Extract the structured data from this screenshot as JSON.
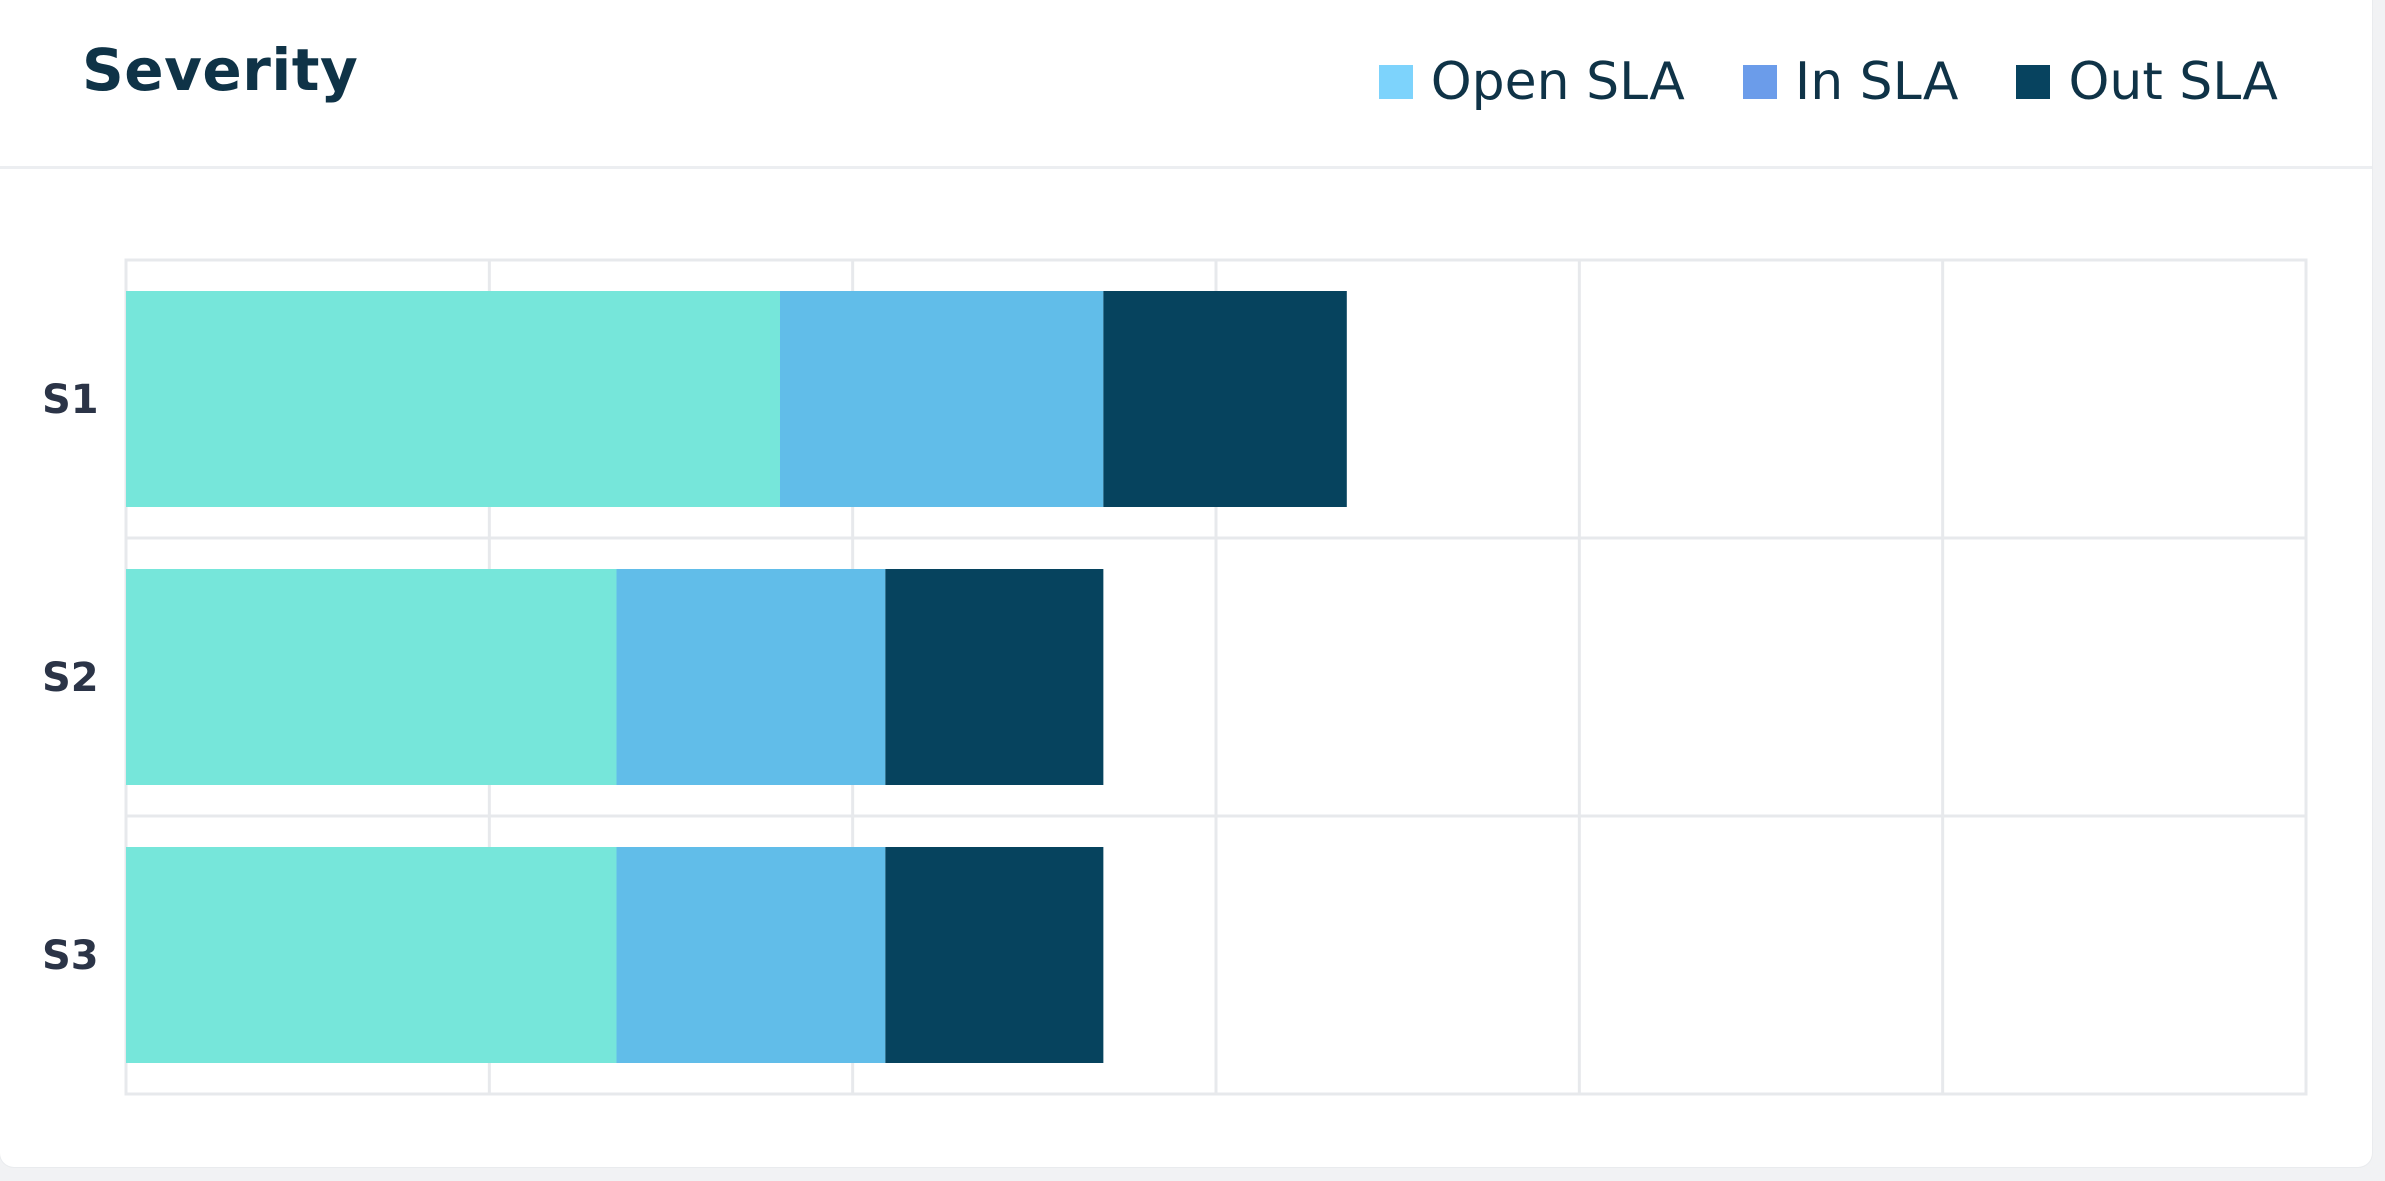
{
  "title": "Severity",
  "legend": [
    {
      "label": "Open SLA",
      "color": "#7dd3fc"
    },
    {
      "label": "In SLA",
      "color": "#6b9cea"
    },
    {
      "label": "Out SLA",
      "color": "#07435f"
    }
  ],
  "chart_data": {
    "type": "bar",
    "orientation": "horizontal",
    "stacked": true,
    "categories": [
      "S1",
      "S2",
      "S3"
    ],
    "series": [
      {
        "name": "Open SLA",
        "color": "#76e6da",
        "values": [
          1.8,
          1.35,
          1.35
        ]
      },
      {
        "name": "In SLA",
        "color": "#61bde9",
        "values": [
          0.89,
          0.74,
          0.74
        ]
      },
      {
        "name": "Out SLA",
        "color": "#06435e",
        "values": [
          0.67,
          0.6,
          0.6
        ]
      }
    ],
    "xlim": [
      0,
      6
    ],
    "grid": true,
    "legend_position": "top-right",
    "xlabel": "",
    "ylabel": ""
  }
}
